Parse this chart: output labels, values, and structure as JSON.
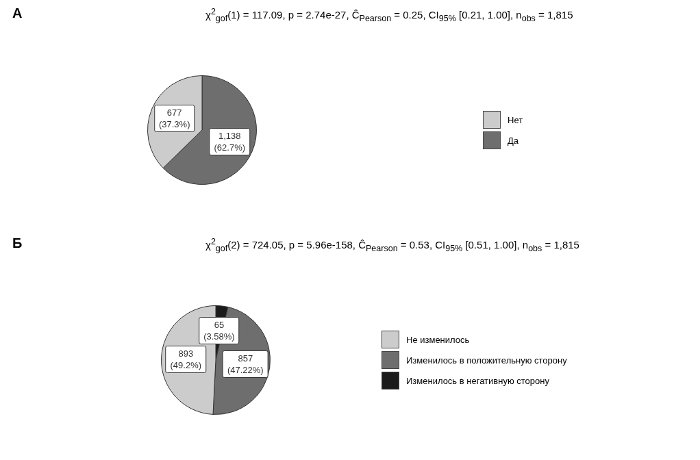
{
  "chart_data": [
    {
      "type": "pie",
      "title": "А",
      "subtitle": "χ$^{2}$$_{gof}$(1) = 117.09, p = 2.74e-27, Ĉ$_{Pearson}$ = 0.25, CI$_{95%}$ [0.21, 1.00], n$_{obs}$ = 1,815",
      "categories": [
        "Нет",
        "Да"
      ],
      "values": [
        677,
        1138
      ],
      "colors": [
        "#cccccc",
        "#6e6e6e"
      ],
      "value_labels": [
        "677\n(37.3%)",
        "1,138\n(62.7%)"
      ],
      "legend": "right"
    },
    {
      "type": "pie",
      "title": "Б",
      "subtitle": "χ$^{2}$$_{gof}$(2) = 724.05, p = 5.96e-158, Ĉ$_{Pearson}$ = 0.53, CI$_{95%}$ [0.51, 1.00], n$_{obs}$ = 1,815",
      "categories": [
        "Не изменилось",
        "Изменилось в положительную сторону",
        "Изменилось в негативную сторону"
      ],
      "values": [
        893,
        857,
        65
      ],
      "colors": [
        "#cccccc",
        "#6e6e6e",
        "#1a1a1a"
      ],
      "value_labels": [
        "893\n(49.2%)",
        "857\n(47.22%)",
        "65\n(3.58%)"
      ],
      "legend": "right"
    }
  ]
}
